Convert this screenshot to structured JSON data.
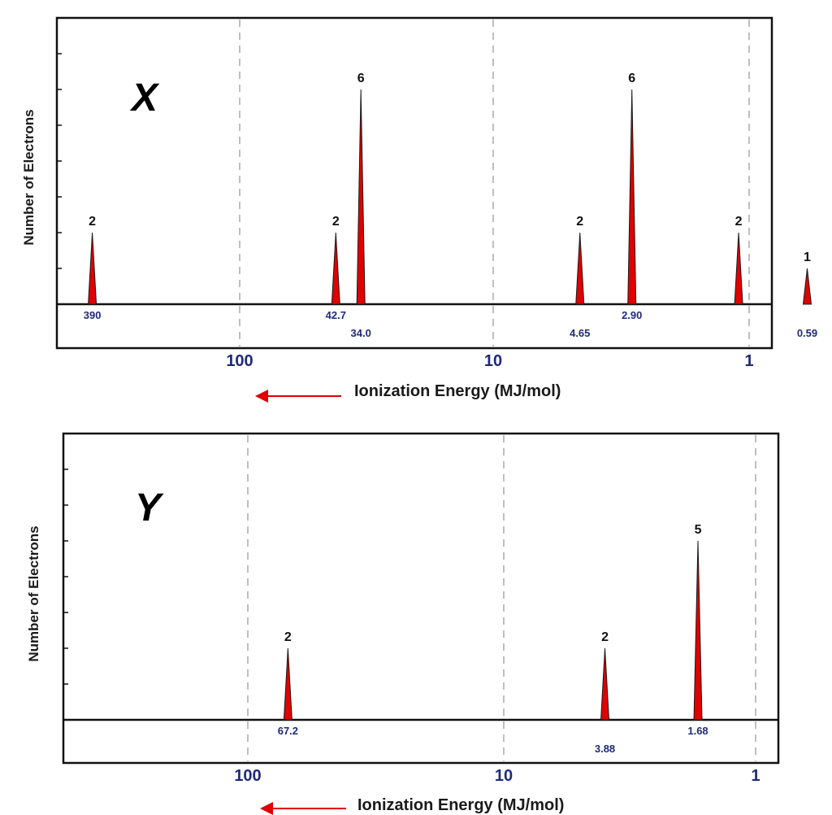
{
  "chart_data": [
    {
      "type": "bar",
      "title": "X",
      "ylabel": "Number of Electrons",
      "xlabel": "Ionization Energy (MJ/mol)",
      "x_scale": "log",
      "x_direction": "decreasing to the right",
      "x_ticks": [
        "100",
        "10",
        "1"
      ],
      "y_range": [
        0,
        7
      ],
      "grid": "dashed vertical lines at 100, 10, 1",
      "peaks": [
        {
          "energy": 390,
          "label": "390",
          "electrons": 2,
          "count_label": "2"
        },
        {
          "energy": 42.7,
          "label": "42.7",
          "electrons": 2,
          "count_label": "2"
        },
        {
          "energy": 34.0,
          "label": "34.0",
          "electrons": 6,
          "count_label": "6"
        },
        {
          "energy": 4.65,
          "label": "4.65",
          "electrons": 2,
          "count_label": "2"
        },
        {
          "energy": 2.9,
          "label": "2.90",
          "electrons": 6,
          "count_label": "6"
        },
        {
          "energy": 0.59,
          "label": "0.59",
          "electrons": 1,
          "count_label": "1"
        }
      ],
      "extra_peak_count_labels": [
        {
          "electrons": 2,
          "count_label": "2",
          "energy": 1.1,
          "value_label": ""
        }
      ]
    },
    {
      "type": "bar",
      "title": "Y",
      "ylabel": "Number of Electrons",
      "xlabel": "Ionization Energy (MJ/mol)",
      "x_scale": "log",
      "x_direction": "decreasing to the right",
      "x_ticks": [
        "100",
        "10",
        "1"
      ],
      "y_range": [
        0,
        7
      ],
      "grid": "dashed vertical lines at 100, 10, 1",
      "peaks": [
        {
          "energy": 67.2,
          "label": "67.2",
          "electrons": 2,
          "count_label": "2"
        },
        {
          "energy": 3.88,
          "label": "3.88",
          "electrons": 2,
          "count_label": "2"
        },
        {
          "energy": 1.68,
          "label": "1.68",
          "electrons": 5,
          "count_label": "5"
        }
      ]
    }
  ],
  "colors": {
    "peak_fill": "#e00000",
    "peak_edge": "#1a1a1a",
    "value_label": "#1f2a7a",
    "tick_label": "#1f2a7a",
    "frame": "#111111",
    "grid": "#aaaaaa",
    "arrow": "#e00000"
  }
}
